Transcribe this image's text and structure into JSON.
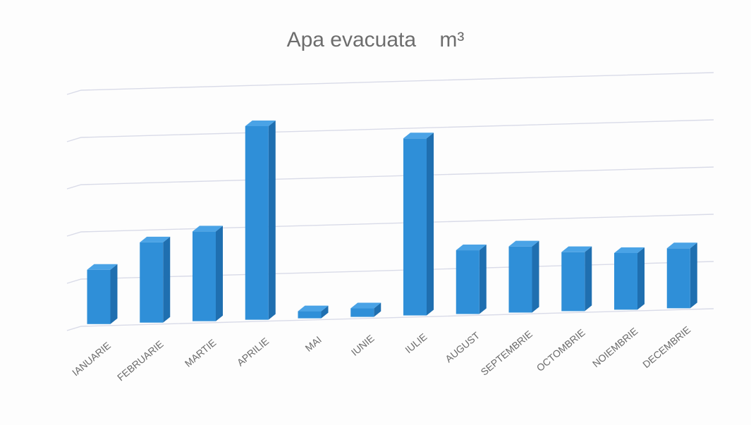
{
  "chart_data": {
    "type": "bar",
    "title": "Apa evacuata    m³",
    "xlabel": "",
    "ylabel": "",
    "categories": [
      "IANUARIE",
      "FEBRUARIE",
      "MARTIE",
      "APRILIE",
      "MAI",
      "IUNIE",
      "IULIE",
      "AUGUST",
      "SEPTEMBRIE",
      "OCTOMBRIE",
      "NOIEMBRIE",
      "DECEMBRIE"
    ],
    "values": [
      1.15,
      1.7,
      1.9,
      4.1,
      0.15,
      0.18,
      3.75,
      1.35,
      1.4,
      1.25,
      1.2,
      1.27
    ],
    "ylim": [
      0,
      5
    ],
    "grid": true,
    "bar_color": "#2f8fd8",
    "bar_side_color": "#1f6fb0",
    "bar_top_color": "#4aa3e6",
    "grid_color": "#d9dbe8"
  }
}
